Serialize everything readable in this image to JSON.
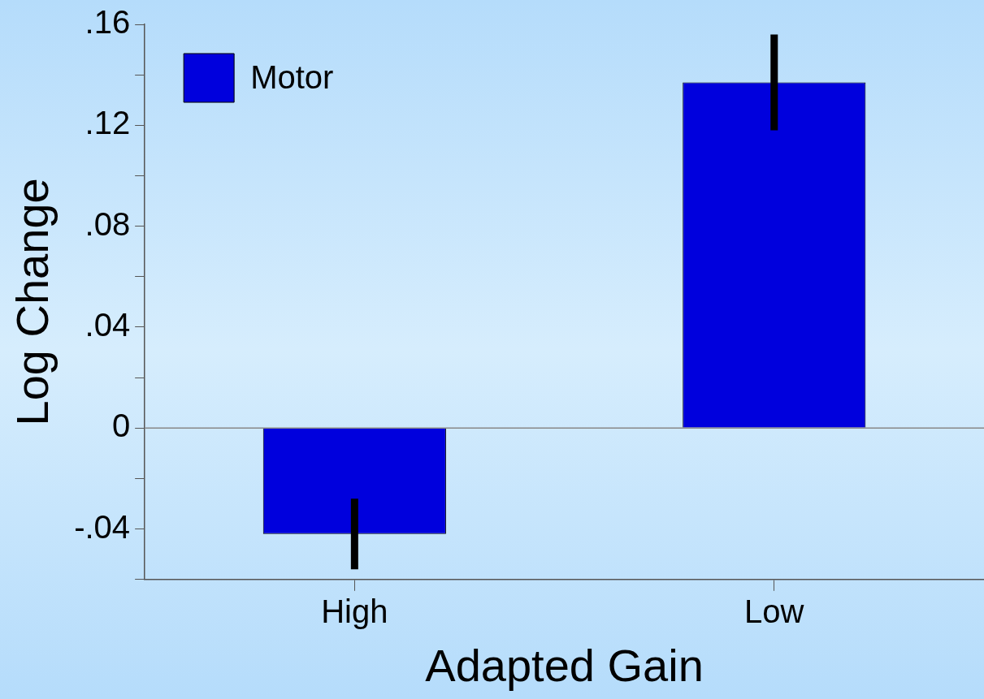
{
  "chart_data": {
    "type": "bar",
    "xlabel": "Adapted Gain",
    "ylabel": "Log Change",
    "categories": [
      "High",
      "Low"
    ],
    "series": [
      {
        "name": "Motor",
        "color": "#0000dd",
        "values": [
          -0.042,
          0.137
        ],
        "errors": [
          0.014,
          0.019
        ]
      }
    ],
    "ylim": [
      -0.06,
      0.16
    ],
    "yticks": [
      {
        "value": -0.06,
        "label": null
      },
      {
        "value": -0.04,
        "label": "-.04"
      },
      {
        "value": -0.02,
        "label": null
      },
      {
        "value": 0,
        "label": "0"
      },
      {
        "value": 0.02,
        "label": null
      },
      {
        "value": 0.04,
        "label": ".04"
      },
      {
        "value": 0.06,
        "label": null
      },
      {
        "value": 0.08,
        "label": ".08"
      },
      {
        "value": 0.1,
        "label": null
      },
      {
        "value": 0.12,
        "label": ".12"
      },
      {
        "value": 0.14,
        "label": null
      },
      {
        "value": 0.16,
        "label": ".16"
      }
    ],
    "ref_lines": [
      {
        "axis": "y",
        "value": 0,
        "label": null,
        "color": "#888888"
      }
    ],
    "grid": false,
    "legend": "top left"
  }
}
